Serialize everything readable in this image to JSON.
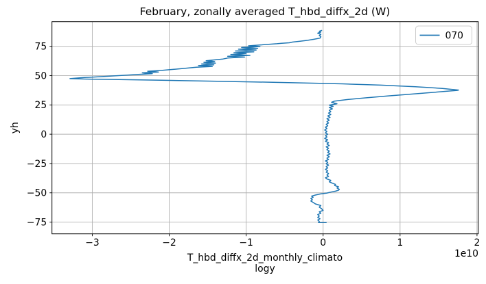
{
  "figure": {
    "title": "February, zonally averaged T_hbd_diffx_2d (W)",
    "xlabel_line1": "T_hbd_diffx_2d_monthly_climato",
    "xlabel_line2": "logy",
    "ylabel": "yh",
    "offset_text": "1e10",
    "legend": {
      "position": "upper right",
      "entries": [
        {
          "label": "070",
          "color": "#1f77b4"
        }
      ]
    },
    "colors": {
      "line": "#1f77b4",
      "grid": "#b0b0b0",
      "spine": "#000000",
      "legend_border": "#cccccc",
      "background": "#ffffff"
    }
  },
  "chart_data": {
    "type": "line",
    "title": "February, zonally averaged T_hbd_diffx_2d (W)",
    "xlabel": "T_hbd_diffx_2d_monthly_climatology",
    "ylabel": "yh",
    "x_units_multiplier": "1e10",
    "xlim": [
      -3.524,
      2.016
    ],
    "ylim": [
      -85,
      96
    ],
    "xticks": [
      -3,
      -2,
      -1,
      0,
      1,
      2
    ],
    "yticks": [
      -75,
      -50,
      -25,
      0,
      25,
      50,
      75
    ],
    "grid": true,
    "legend_position": "upper right",
    "series": [
      {
        "name": "070",
        "color": "#1f77b4",
        "note": "points are [x_value_in_1e10_W, yh_latitude], ordered south to north",
        "points": [
          [
            0.04,
            -75.4
          ],
          [
            -0.06,
            -75.4
          ],
          [
            -0.05,
            -74.4
          ],
          [
            -0.07,
            -73.2
          ],
          [
            -0.04,
            -72.1
          ],
          [
            -0.07,
            -71.0
          ],
          [
            -0.05,
            -69.8
          ],
          [
            -0.07,
            -68.6
          ],
          [
            -0.03,
            -67.4
          ],
          [
            -0.05,
            -66.2
          ],
          [
            0.0,
            -65.0
          ],
          [
            -0.02,
            -63.6
          ],
          [
            -0.05,
            -62.2
          ],
          [
            -0.03,
            -60.9
          ],
          [
            -0.1,
            -59.5
          ],
          [
            -0.13,
            -58.2
          ],
          [
            -0.16,
            -57.0
          ],
          [
            -0.14,
            -55.9
          ],
          [
            -0.16,
            -54.8
          ],
          [
            -0.13,
            -53.8
          ],
          [
            -0.15,
            -52.8
          ],
          [
            -0.1,
            -51.9
          ],
          [
            -0.04,
            -51.0
          ],
          [
            0.05,
            -50.2
          ],
          [
            0.1,
            -49.4
          ],
          [
            0.16,
            -48.6
          ],
          [
            0.2,
            -47.8
          ],
          [
            0.21,
            -47.0
          ],
          [
            0.18,
            -45.9
          ],
          [
            0.2,
            -44.9
          ],
          [
            0.15,
            -43.8
          ],
          [
            0.16,
            -42.8
          ],
          [
            0.12,
            -41.8
          ],
          [
            0.08,
            -40.6
          ],
          [
            0.1,
            -39.4
          ],
          [
            0.05,
            -38.2
          ],
          [
            0.03,
            -37.2
          ],
          [
            0.07,
            -36.0
          ],
          [
            0.05,
            -34.8
          ],
          [
            0.07,
            -33.6
          ],
          [
            0.04,
            -32.4
          ],
          [
            0.06,
            -31.2
          ],
          [
            0.03,
            -30.0
          ],
          [
            0.06,
            -28.8
          ],
          [
            0.04,
            -27.6
          ],
          [
            0.07,
            -26.4
          ],
          [
            0.04,
            -25.2
          ],
          [
            0.06,
            -24.0
          ],
          [
            0.03,
            -22.8
          ],
          [
            0.07,
            -21.6
          ],
          [
            0.05,
            -20.4
          ],
          [
            0.08,
            -19.2
          ],
          [
            0.05,
            -18.0
          ],
          [
            0.09,
            -16.8
          ],
          [
            0.06,
            -15.6
          ],
          [
            0.08,
            -14.4
          ],
          [
            0.05,
            -13.2
          ],
          [
            0.07,
            -12.0
          ],
          [
            0.04,
            -10.8
          ],
          [
            0.08,
            -9.6
          ],
          [
            0.05,
            -8.4
          ],
          [
            0.07,
            -7.2
          ],
          [
            0.03,
            -6.0
          ],
          [
            0.06,
            -4.8
          ],
          [
            0.02,
            -3.6
          ],
          [
            0.05,
            -2.4
          ],
          [
            0.03,
            -1.2
          ],
          [
            0.06,
            0.0
          ],
          [
            0.03,
            1.2
          ],
          [
            0.05,
            2.4
          ],
          [
            0.02,
            3.6
          ],
          [
            0.05,
            4.8
          ],
          [
            0.03,
            6.0
          ],
          [
            0.06,
            7.2
          ],
          [
            0.04,
            8.4
          ],
          [
            0.07,
            9.6
          ],
          [
            0.05,
            10.8
          ],
          [
            0.08,
            12.0
          ],
          [
            0.05,
            13.2
          ],
          [
            0.09,
            14.4
          ],
          [
            0.06,
            15.6
          ],
          [
            0.1,
            16.8
          ],
          [
            0.07,
            18.0
          ],
          [
            0.1,
            19.2
          ],
          [
            0.08,
            20.4
          ],
          [
            0.12,
            21.6
          ],
          [
            0.08,
            22.8
          ],
          [
            0.13,
            23.8
          ],
          [
            0.08,
            24.8
          ],
          [
            0.18,
            26.0
          ],
          [
            0.11,
            27.2
          ],
          [
            0.15,
            28.3
          ],
          [
            0.32,
            29.6
          ],
          [
            0.55,
            31.0
          ],
          [
            0.85,
            32.7
          ],
          [
            1.15,
            34.2
          ],
          [
            1.4,
            35.5
          ],
          [
            1.6,
            36.6
          ],
          [
            1.74,
            37.4
          ],
          [
            1.76,
            37.7
          ],
          [
            1.55,
            39.1
          ],
          [
            1.2,
            40.5
          ],
          [
            0.75,
            41.9
          ],
          [
            0.25,
            43.0
          ],
          [
            -0.3,
            43.8
          ],
          [
            -0.9,
            44.6
          ],
          [
            -1.5,
            45.3
          ],
          [
            -2.1,
            46.0
          ],
          [
            -2.65,
            46.6
          ],
          [
            -3.05,
            47.0
          ],
          [
            -3.29,
            47.4
          ],
          [
            -3.12,
            48.3
          ],
          [
            -2.87,
            49.2
          ],
          [
            -2.62,
            50.1
          ],
          [
            -2.42,
            50.9
          ],
          [
            -2.22,
            51.7
          ],
          [
            -2.35,
            52.4
          ],
          [
            -2.14,
            53.1
          ],
          [
            -2.28,
            53.7
          ],
          [
            -2.1,
            54.4
          ],
          [
            -1.95,
            55.3
          ],
          [
            -1.8,
            56.2
          ],
          [
            -1.65,
            57.1
          ],
          [
            -1.44,
            57.8
          ],
          [
            -1.62,
            58.5
          ],
          [
            -1.42,
            59.2
          ],
          [
            -1.58,
            59.9
          ],
          [
            -1.4,
            60.6
          ],
          [
            -1.55,
            61.3
          ],
          [
            -1.41,
            62.0
          ],
          [
            -1.52,
            62.7
          ],
          [
            -1.4,
            63.5
          ],
          [
            -1.3,
            64.2
          ],
          [
            -1.24,
            65.0
          ],
          [
            -1.02,
            65.8
          ],
          [
            -1.24,
            66.5
          ],
          [
            -0.95,
            67.3
          ],
          [
            -1.2,
            68.0
          ],
          [
            -1.0,
            68.8
          ],
          [
            -1.16,
            69.5
          ],
          [
            -0.9,
            70.3
          ],
          [
            -1.14,
            71.0
          ],
          [
            -0.87,
            71.8
          ],
          [
            -1.1,
            72.5
          ],
          [
            -0.85,
            73.3
          ],
          [
            -1.06,
            74.0
          ],
          [
            -0.82,
            74.8
          ],
          [
            -0.97,
            75.4
          ],
          [
            -0.81,
            76.2
          ],
          [
            -0.6,
            77.2
          ],
          [
            -0.54,
            77.6
          ],
          [
            -0.44,
            78.0
          ],
          [
            -0.4,
            78.6
          ],
          [
            -0.3,
            79.3
          ],
          [
            -0.2,
            80.1
          ],
          [
            -0.12,
            81.0
          ],
          [
            -0.04,
            82.0
          ],
          [
            -0.03,
            83.2
          ],
          [
            -0.05,
            84.2
          ],
          [
            -0.03,
            85.2
          ],
          [
            -0.07,
            86.2
          ],
          [
            -0.03,
            87.2
          ],
          [
            -0.05,
            87.8
          ],
          [
            -0.02,
            88.5
          ]
        ]
      }
    ]
  }
}
